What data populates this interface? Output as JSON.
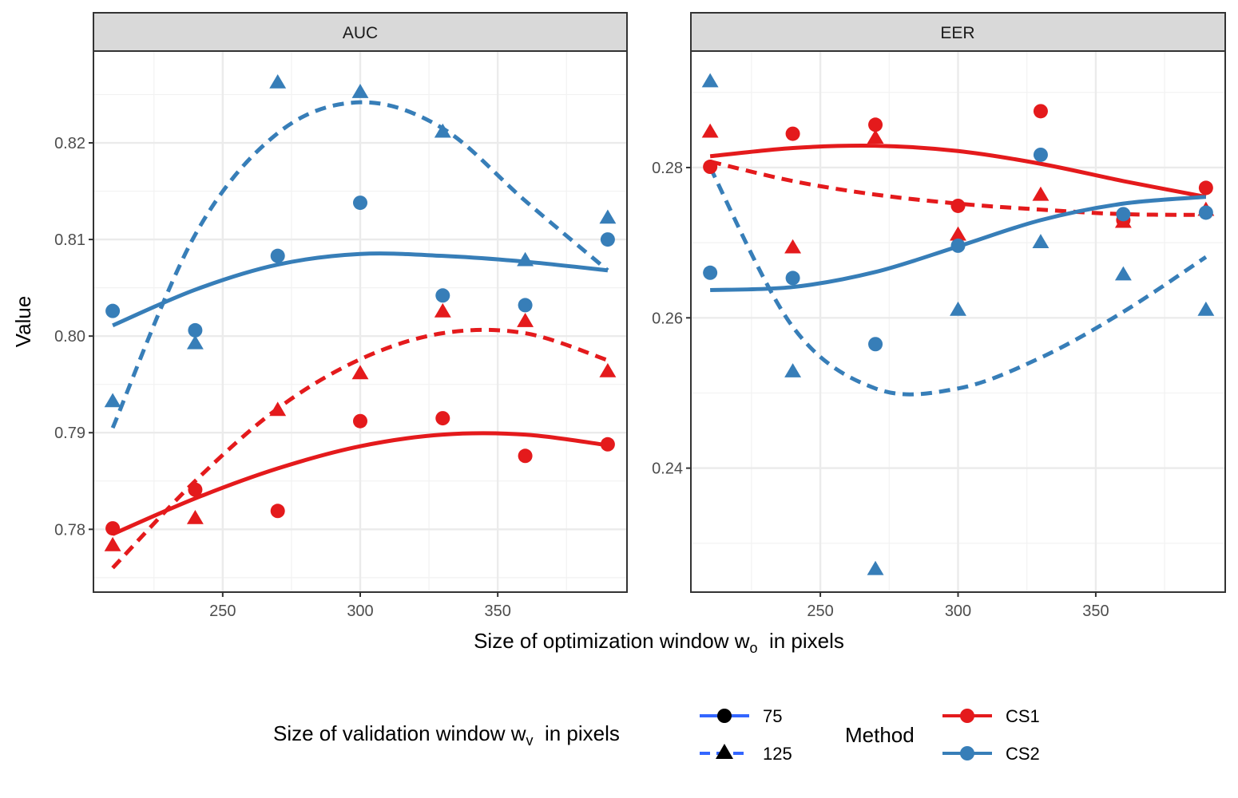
{
  "chart_data": {
    "type": "scatter",
    "colors": {
      "CS1": "#e41a1c",
      "CS2": "#377eb8"
    },
    "x": [
      210,
      240,
      270,
      300,
      330,
      360,
      390
    ],
    "xlim": [
      203,
      397
    ],
    "x_ticks": [
      250,
      300,
      350
    ],
    "x_tick_labels": [
      "250",
      "300",
      "350"
    ],
    "xlabel": {
      "main": "Size of optimization window ",
      "sym": "w",
      "sub": "o",
      "tail": "  in pixels"
    },
    "ylabel": "Value",
    "grid": true,
    "panels": [
      {
        "strip": "AUC",
        "ylim": [
          0.7735,
          0.8295
        ],
        "y_ticks": [
          0.78,
          0.79,
          0.8,
          0.81,
          0.82
        ],
        "y_tick_labels": [
          "0.78",
          "0.79",
          "0.80",
          "0.81",
          "0.82"
        ],
        "series": [
          {
            "method": "CS1",
            "window": "75",
            "points": [
              0.7801,
              0.7841,
              0.7819,
              0.7912,
              0.7915,
              0.7876,
              0.7888
            ],
            "fit": [
              0.7795,
              0.7832,
              0.7863,
              0.7886,
              0.7898,
              0.7898,
              0.7887
            ]
          },
          {
            "method": "CS1",
            "window": "125",
            "points": [
              0.7783,
              0.7811,
              0.7923,
              0.7961,
              0.8025,
              0.8015,
              0.7963
            ],
            "fit": [
              0.776,
              0.785,
              0.7925,
              0.7976,
              0.8003,
              0.8003,
              0.7975
            ]
          },
          {
            "method": "CS2",
            "window": "75",
            "points": [
              0.8026,
              0.8006,
              0.8083,
              0.8138,
              0.8042,
              0.8032,
              0.81
            ],
            "fit": [
              0.8011,
              0.8048,
              0.8074,
              0.8085,
              0.8083,
              0.8077,
              0.8068
            ]
          },
          {
            "method": "CS2",
            "window": "125",
            "points": [
              0.7932,
              0.7992,
              0.8262,
              0.8252,
              0.8211,
              0.8078,
              0.8122
            ],
            "fit": [
              0.7905,
              0.8105,
              0.821,
              0.8242,
              0.8215,
              0.814,
              0.8068
            ]
          }
        ]
      },
      {
        "strip": "EER",
        "ylim": [
          0.2235,
          0.2955
        ],
        "y_ticks": [
          0.24,
          0.26,
          0.28
        ],
        "y_tick_labels": [
          "0.24",
          "0.26",
          "0.28"
        ],
        "series": [
          {
            "method": "CS1",
            "window": "75",
            "points": [
              0.2801,
              0.2845,
              0.2857,
              0.2749,
              0.2875,
              0.273,
              0.2773
            ],
            "fit": [
              0.2815,
              0.2826,
              0.2829,
              0.2822,
              0.2805,
              0.2782,
              0.2761
            ]
          },
          {
            "method": "CS1",
            "window": "125",
            "points": [
              0.2847,
              0.2693,
              0.2839,
              0.271,
              0.2763,
              0.2727,
              0.2743
            ],
            "fit": [
              0.2808,
              0.2782,
              0.2764,
              0.2752,
              0.2744,
              0.2738,
              0.2737
            ]
          },
          {
            "method": "CS2",
            "window": "75",
            "points": [
              0.266,
              0.2653,
              0.2565,
              0.2696,
              0.2817,
              0.2738,
              0.274
            ],
            "fit": [
              0.2637,
              0.2641,
              0.2661,
              0.2695,
              0.273,
              0.2752,
              0.2761
            ]
          },
          {
            "method": "CS2",
            "window": "125",
            "points": [
              0.2914,
              0.2528,
              0.2265,
              0.261,
              0.27,
              0.2657,
              0.261
            ],
            "fit": [
              0.28,
              0.2588,
              0.2506,
              0.2506,
              0.2547,
              0.2608,
              0.2681
            ]
          }
        ]
      }
    ],
    "legend": {
      "position": "bottom",
      "window_title": {
        "main": "Size of validation window ",
        "sym": "w",
        "sub": "v",
        "tail": "  in pixels"
      },
      "window_items": [
        {
          "label": "75",
          "shape": "circle",
          "line": "solid"
        },
        {
          "label": "125",
          "shape": "triangle",
          "line": "dashed"
        }
      ],
      "method_title": "Method",
      "method_items": [
        {
          "label": "CS1"
        },
        {
          "label": "CS2"
        }
      ]
    }
  }
}
